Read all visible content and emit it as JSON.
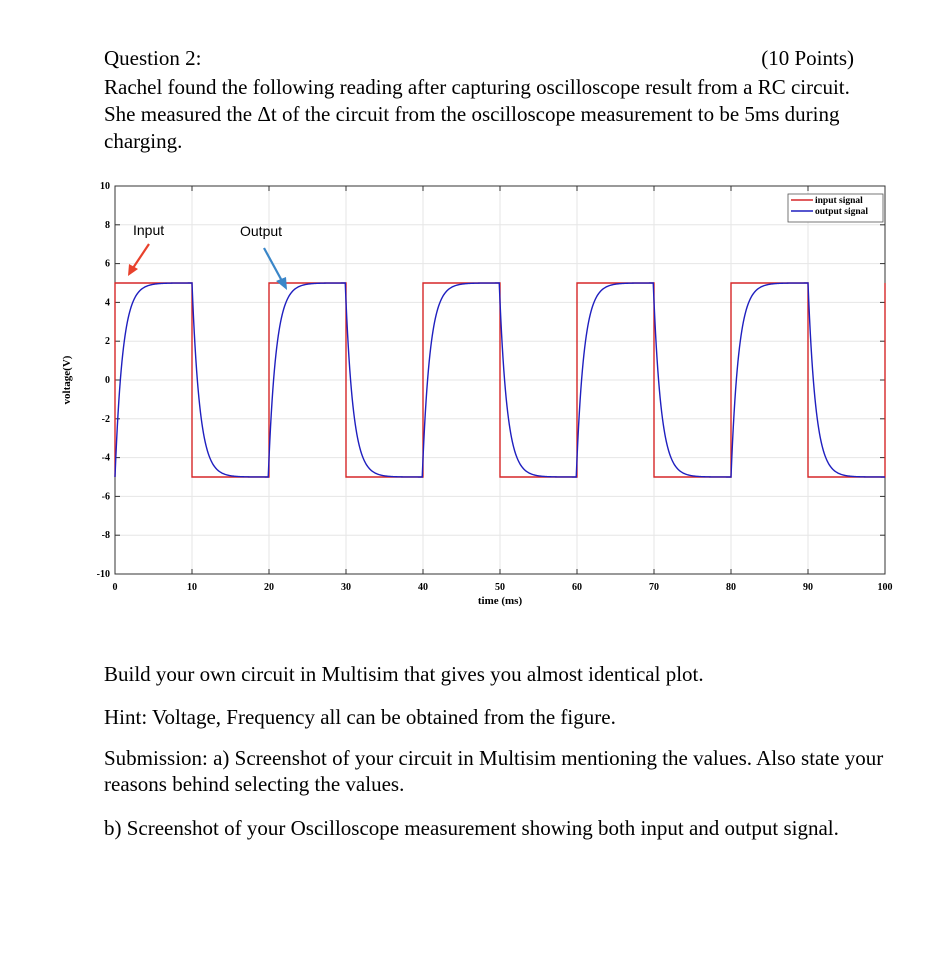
{
  "question": {
    "title": "Question 2:",
    "points": "(10 Points)",
    "body": "Rachel found the following reading after capturing oscilloscope result from a RC circuit. She measured the Δt of the circuit from the oscilloscope measurement to be 5ms during charging."
  },
  "chart_data": {
    "type": "line",
    "xlabel": "time (ms)",
    "ylabel": "voltage(V)",
    "xlim": [
      0,
      100
    ],
    "ylim": [
      -10,
      10
    ],
    "xticks": [
      0,
      10,
      20,
      30,
      40,
      50,
      60,
      70,
      80,
      90,
      100
    ],
    "yticks": [
      10,
      8,
      6,
      4,
      2,
      0,
      -2,
      -4,
      -6,
      -8,
      -10
    ],
    "grid": true,
    "legend_position": "top-right",
    "series": [
      {
        "name": "input signal",
        "color": "#d62728",
        "description_values": {
          "high": 5,
          "low": -5,
          "period_ms": 20,
          "duty": 0.5
        }
      },
      {
        "name": "output signal",
        "color": "#1f1fbf",
        "description_values": {
          "high": 5,
          "low": -5,
          "tau_ms": 1,
          "period_ms": 20
        }
      }
    ],
    "annotations": [
      {
        "text": "Input",
        "color": "#e8412c"
      },
      {
        "text": "Output",
        "color": "#3a86c8"
      }
    ]
  },
  "paragraphs": {
    "p1": "Build your own circuit in Multisim that gives you almost identical plot.",
    "p2": "Hint: Voltage, Frequency all can be obtained from the figure.",
    "p3": "Submission: a) Screenshot of your circuit in Multisim mentioning the values. Also state your reasons behind selecting the values.",
    "p4": "b) Screenshot of your Oscilloscope measurement showing both input and output signal."
  }
}
